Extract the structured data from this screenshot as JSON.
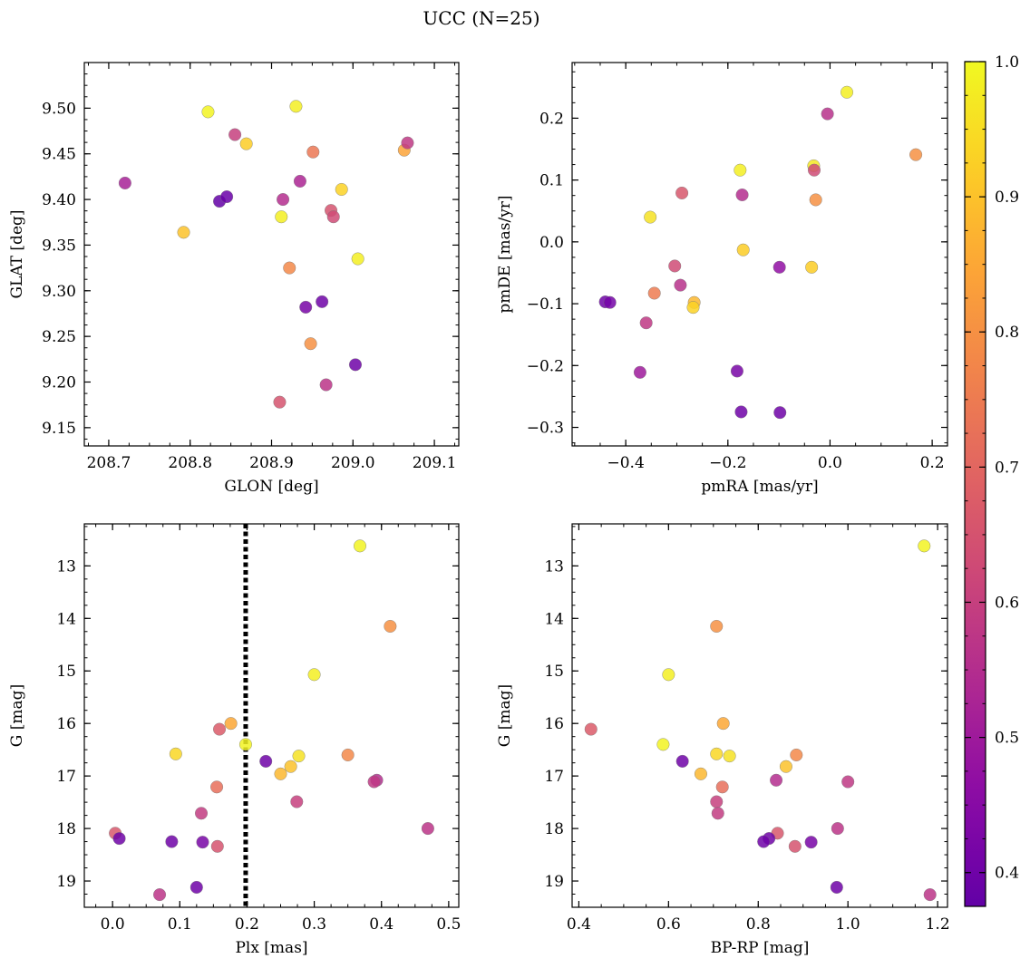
{
  "figure": {
    "title": "UCC (N=25)",
    "colormap": "plasma",
    "colorbar": {
      "range": [
        0.375,
        1.0
      ],
      "ticks": [
        0.4,
        0.5,
        0.6,
        0.7,
        0.8,
        0.9,
        1.0
      ],
      "tick_labels": [
        "0.4",
        "0.5",
        "0.6",
        "0.7",
        "0.8",
        "0.9",
        "1.0"
      ]
    }
  },
  "chart_data": [
    {
      "type": "scatter",
      "panel": "top-left",
      "xlabel": "GLON [deg]",
      "ylabel": "GLAT [deg]",
      "xlim": [
        208.67,
        209.13
      ],
      "ylim": [
        9.13,
        9.55
      ],
      "xticks": [
        208.7,
        208.8,
        208.9,
        209.0,
        209.1
      ],
      "xtick_labels": [
        "208.7",
        "208.8",
        "208.9",
        "209.0",
        "209.1"
      ],
      "yticks": [
        9.15,
        9.2,
        9.25,
        9.3,
        9.35,
        9.4,
        9.45,
        9.5
      ],
      "ytick_labels": [
        "9.15",
        "9.20",
        "9.25",
        "9.30",
        "9.35",
        "9.40",
        "9.45",
        "9.50"
      ],
      "y_inverted": false,
      "points": [
        {
          "x": 208.822,
          "y": 9.496,
          "c": 0.99
        },
        {
          "x": 208.93,
          "y": 9.502,
          "c": 0.98
        },
        {
          "x": 208.855,
          "y": 9.471,
          "c": 0.6
        },
        {
          "x": 208.869,
          "y": 9.461,
          "c": 0.92
        },
        {
          "x": 208.951,
          "y": 9.452,
          "c": 0.74
        },
        {
          "x": 209.063,
          "y": 9.454,
          "c": 0.84
        },
        {
          "x": 209.067,
          "y": 9.462,
          "c": 0.58
        },
        {
          "x": 208.72,
          "y": 9.418,
          "c": 0.52
        },
        {
          "x": 208.935,
          "y": 9.42,
          "c": 0.53
        },
        {
          "x": 208.986,
          "y": 9.411,
          "c": 0.93
        },
        {
          "x": 208.836,
          "y": 9.398,
          "c": 0.38
        },
        {
          "x": 208.845,
          "y": 9.403,
          "c": 0.39
        },
        {
          "x": 208.914,
          "y": 9.4,
          "c": 0.55
        },
        {
          "x": 208.973,
          "y": 9.388,
          "c": 0.65
        },
        {
          "x": 208.976,
          "y": 9.381,
          "c": 0.63
        },
        {
          "x": 208.912,
          "y": 9.381,
          "c": 0.98
        },
        {
          "x": 208.792,
          "y": 9.364,
          "c": 0.9
        },
        {
          "x": 209.006,
          "y": 9.335,
          "c": 0.98
        },
        {
          "x": 208.922,
          "y": 9.325,
          "c": 0.78
        },
        {
          "x": 208.962,
          "y": 9.288,
          "c": 0.4
        },
        {
          "x": 208.942,
          "y": 9.282,
          "c": 0.42
        },
        {
          "x": 208.948,
          "y": 9.242,
          "c": 0.8
        },
        {
          "x": 209.003,
          "y": 9.219,
          "c": 0.4
        },
        {
          "x": 208.967,
          "y": 9.197,
          "c": 0.57
        },
        {
          "x": 208.91,
          "y": 9.178,
          "c": 0.65
        }
      ]
    },
    {
      "type": "scatter",
      "panel": "top-right",
      "xlabel": "pmRA [mas/yr]",
      "ylabel": "pmDE [mas/yr]",
      "xlim": [
        -0.505,
        0.23
      ],
      "ylim": [
        -0.33,
        0.29
      ],
      "xticks": [
        -0.4,
        -0.2,
        0.0,
        0.2
      ],
      "xtick_labels": [
        "−0.4",
        "−0.2",
        "0.0",
        "0.2"
      ],
      "yticks": [
        -0.3,
        -0.2,
        -0.1,
        0.0,
        0.1,
        0.2
      ],
      "ytick_labels": [
        "−0.3",
        "−0.2",
        "−0.1",
        "0.0",
        "0.1",
        "0.2"
      ],
      "y_inverted": false,
      "points": [
        {
          "x": 0.033,
          "y": 0.242,
          "c": 0.98
        },
        {
          "x": -0.005,
          "y": 0.207,
          "c": 0.56
        },
        {
          "x": 0.168,
          "y": 0.141,
          "c": 0.8
        },
        {
          "x": -0.176,
          "y": 0.116,
          "c": 0.98
        },
        {
          "x": -0.032,
          "y": 0.123,
          "c": 0.97
        },
        {
          "x": -0.031,
          "y": 0.116,
          "c": 0.63
        },
        {
          "x": -0.29,
          "y": 0.079,
          "c": 0.66
        },
        {
          "x": -0.172,
          "y": 0.076,
          "c": 0.55
        },
        {
          "x": -0.028,
          "y": 0.068,
          "c": 0.8
        },
        {
          "x": -0.352,
          "y": 0.04,
          "c": 0.96
        },
        {
          "x": -0.17,
          "y": -0.013,
          "c": 0.92
        },
        {
          "x": -0.304,
          "y": -0.039,
          "c": 0.63
        },
        {
          "x": -0.099,
          "y": -0.041,
          "c": 0.47
        },
        {
          "x": -0.036,
          "y": -0.041,
          "c": 0.92
        },
        {
          "x": -0.293,
          "y": -0.07,
          "c": 0.56
        },
        {
          "x": -0.344,
          "y": -0.083,
          "c": 0.75
        },
        {
          "x": -0.44,
          "y": -0.097,
          "c": 0.4
        },
        {
          "x": -0.431,
          "y": -0.098,
          "c": 0.41
        },
        {
          "x": -0.266,
          "y": -0.098,
          "c": 0.88
        },
        {
          "x": -0.268,
          "y": -0.106,
          "c": 0.93
        },
        {
          "x": -0.36,
          "y": -0.131,
          "c": 0.58
        },
        {
          "x": -0.372,
          "y": -0.211,
          "c": 0.5
        },
        {
          "x": -0.182,
          "y": -0.209,
          "c": 0.42
        },
        {
          "x": -0.174,
          "y": -0.275,
          "c": 0.4
        },
        {
          "x": -0.098,
          "y": -0.276,
          "c": 0.4
        }
      ]
    },
    {
      "type": "scatter",
      "panel": "bottom-left",
      "xlabel": "Plx [mas]",
      "ylabel": "G [mag]",
      "xlim": [
        -0.042,
        0.515
      ],
      "ylim": [
        19.5,
        12.2
      ],
      "xticks": [
        0.0,
        0.1,
        0.2,
        0.3,
        0.4,
        0.5
      ],
      "xtick_labels": [
        "0.0",
        "0.1",
        "0.2",
        "0.3",
        "0.4",
        "0.5"
      ],
      "yticks": [
        13,
        14,
        15,
        16,
        17,
        18,
        19
      ],
      "ytick_labels": [
        "13",
        "14",
        "15",
        "16",
        "17",
        "18",
        "19"
      ],
      "y_inverted": true,
      "vline": {
        "x": 0.198,
        "style": "dotted"
      },
      "points": [
        {
          "x": 0.368,
          "y": 12.62,
          "c": 0.99
        },
        {
          "x": 0.413,
          "y": 14.15,
          "c": 0.8
        },
        {
          "x": 0.3,
          "y": 15.07,
          "c": 0.98
        },
        {
          "x": 0.176,
          "y": 16.0,
          "c": 0.85
        },
        {
          "x": 0.159,
          "y": 16.11,
          "c": 0.67
        },
        {
          "x": 0.198,
          "y": 16.4,
          "c": 0.99
        },
        {
          "x": 0.094,
          "y": 16.58,
          "c": 0.94
        },
        {
          "x": 0.35,
          "y": 16.6,
          "c": 0.78
        },
        {
          "x": 0.277,
          "y": 16.62,
          "c": 0.96
        },
        {
          "x": 0.228,
          "y": 16.72,
          "c": 0.4
        },
        {
          "x": 0.265,
          "y": 16.82,
          "c": 0.9
        },
        {
          "x": 0.25,
          "y": 16.96,
          "c": 0.88
        },
        {
          "x": 0.393,
          "y": 17.08,
          "c": 0.55
        },
        {
          "x": 0.389,
          "y": 17.11,
          "c": 0.58
        },
        {
          "x": 0.155,
          "y": 17.21,
          "c": 0.72
        },
        {
          "x": 0.274,
          "y": 17.49,
          "c": 0.6
        },
        {
          "x": 0.132,
          "y": 17.71,
          "c": 0.59
        },
        {
          "x": 0.469,
          "y": 18.0,
          "c": 0.57
        },
        {
          "x": 0.004,
          "y": 18.09,
          "c": 0.66
        },
        {
          "x": 0.01,
          "y": 18.19,
          "c": 0.4
        },
        {
          "x": 0.088,
          "y": 18.25,
          "c": 0.4
        },
        {
          "x": 0.134,
          "y": 18.26,
          "c": 0.42
        },
        {
          "x": 0.156,
          "y": 18.34,
          "c": 0.65
        },
        {
          "x": 0.125,
          "y": 19.12,
          "c": 0.4
        },
        {
          "x": 0.07,
          "y": 19.26,
          "c": 0.57
        }
      ]
    },
    {
      "type": "scatter",
      "panel": "bottom-right",
      "xlabel": "BP-RP [mag]",
      "ylabel": "G [mag]",
      "xlim": [
        0.385,
        1.222
      ],
      "ylim": [
        19.5,
        12.2
      ],
      "xticks": [
        0.4,
        0.6,
        0.8,
        1.0,
        1.2
      ],
      "xtick_labels": [
        "0.4",
        "0.6",
        "0.8",
        "1.0",
        "1.2"
      ],
      "yticks": [
        13,
        14,
        15,
        16,
        17,
        18,
        19
      ],
      "ytick_labels": [
        "13",
        "14",
        "15",
        "16",
        "17",
        "18",
        "19"
      ],
      "y_inverted": true,
      "points": [
        {
          "x": 1.17,
          "y": 12.62,
          "c": 0.99
        },
        {
          "x": 0.707,
          "y": 14.15,
          "c": 0.8
        },
        {
          "x": 0.6,
          "y": 15.07,
          "c": 0.98
        },
        {
          "x": 0.722,
          "y": 16.0,
          "c": 0.85
        },
        {
          "x": 0.427,
          "y": 16.11,
          "c": 0.67
        },
        {
          "x": 0.588,
          "y": 16.4,
          "c": 0.99
        },
        {
          "x": 0.707,
          "y": 16.58,
          "c": 0.94
        },
        {
          "x": 0.885,
          "y": 16.6,
          "c": 0.78
        },
        {
          "x": 0.736,
          "y": 16.62,
          "c": 0.96
        },
        {
          "x": 0.631,
          "y": 16.72,
          "c": 0.4
        },
        {
          "x": 0.862,
          "y": 16.82,
          "c": 0.9
        },
        {
          "x": 0.672,
          "y": 16.96,
          "c": 0.88
        },
        {
          "x": 0.84,
          "y": 17.08,
          "c": 0.55
        },
        {
          "x": 1.0,
          "y": 17.11,
          "c": 0.58
        },
        {
          "x": 0.72,
          "y": 17.21,
          "c": 0.72
        },
        {
          "x": 0.707,
          "y": 17.49,
          "c": 0.6
        },
        {
          "x": 0.71,
          "y": 17.71,
          "c": 0.59
        },
        {
          "x": 0.977,
          "y": 18.0,
          "c": 0.57
        },
        {
          "x": 0.843,
          "y": 18.09,
          "c": 0.66
        },
        {
          "x": 0.824,
          "y": 18.19,
          "c": 0.4
        },
        {
          "x": 0.812,
          "y": 18.25,
          "c": 0.4
        },
        {
          "x": 0.918,
          "y": 18.26,
          "c": 0.42
        },
        {
          "x": 0.882,
          "y": 18.34,
          "c": 0.65
        },
        {
          "x": 0.975,
          "y": 19.12,
          "c": 0.4
        },
        {
          "x": 1.183,
          "y": 19.26,
          "c": 0.57
        }
      ]
    }
  ]
}
